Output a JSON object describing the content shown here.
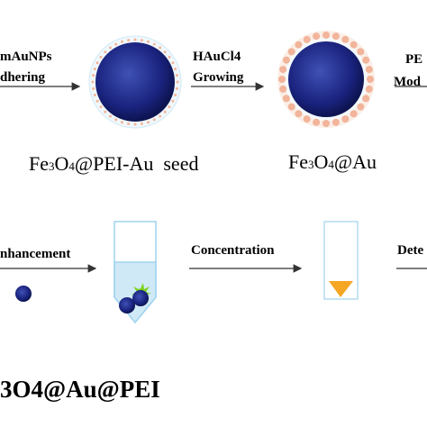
{
  "steps": {
    "step1": {
      "line1": "mAuNPs",
      "line2": "dhering"
    },
    "step2": {
      "line1": "HAuCl4",
      "line2": "Growing"
    },
    "step3": {
      "line1": "PE",
      "line2": "Mod"
    },
    "step4": {
      "label": "nhancement"
    },
    "step5": {
      "label": "Concentration"
    },
    "step6": {
      "label": "Dete"
    }
  },
  "captions": {
    "seed": {
      "pre": "Fe",
      "sub1": "3",
      "mid": "O",
      "sub2": "4",
      "post": "@PEI-Au  seed"
    },
    "core": {
      "pre": "Fe",
      "sub1": "3",
      "mid": "O",
      "sub2": "4",
      "post": "@Au"
    }
  },
  "product_label": "3O4@Au@PEI",
  "colors": {
    "core": "#1a237e",
    "core_highlight": "#3949ab",
    "shell": "#e8f4fb",
    "dots": "#f2b49a",
    "tube_liquid": "#cfe9f6",
    "tube_outline": "#9fd3ee",
    "triangle": "#f5a623",
    "star": "#7ed321",
    "arrow": "#333333"
  }
}
